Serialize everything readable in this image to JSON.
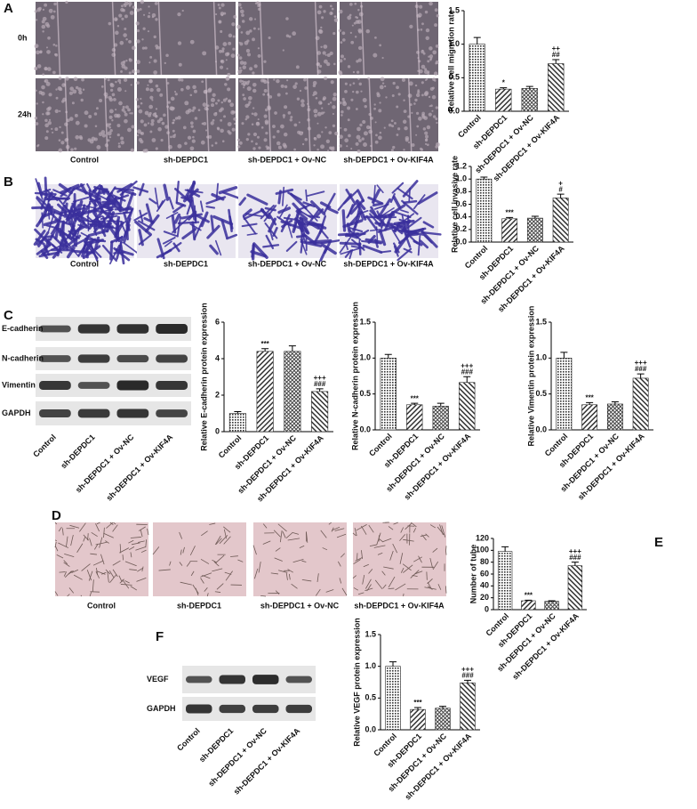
{
  "panel_labels": [
    "A",
    "B",
    "C",
    "D",
    "E",
    "F"
  ],
  "migration_images": {
    "rows": [
      "0h",
      "24h"
    ],
    "columns": [
      "Control",
      "sh-DEPDC1",
      "sh-DEPDC1 + Ov-NC",
      "sh-DEPDC1 + Ov-KIF4A"
    ]
  },
  "invasion_images": {
    "columns": [
      "Control",
      "sh-DEPDC1",
      "sh-DEPDC1 + Ov-NC",
      "sh-DEPDC1 + Ov-KIF4A"
    ]
  },
  "blot_c": {
    "proteins": [
      "E-cadherin",
      "N-cadherin",
      "Vimentin",
      "GAPDH"
    ],
    "lanes": [
      "Control",
      "sh-DEPDC1",
      "sh-DEPDC1 + Ov-NC",
      "sh-DEPDC1 + Ov-KIF4A"
    ]
  },
  "tube_images": {
    "columns": [
      "Control",
      "sh-DEPDC1",
      "sh-DEPDC1 + Ov-NC",
      "sh-DEPDC1 + Ov-KIF4A"
    ]
  },
  "blot_f": {
    "proteins": [
      "VEGF",
      "GAPDH"
    ],
    "lanes": [
      "Control",
      "sh-DEPDC1",
      "sh-DEPDC1 + Ov-NC",
      "sh-DEPDC1 + Ov-KIF4A"
    ]
  },
  "chart_data": [
    {
      "type": "bar",
      "y_label": "Relative cell migration rate",
      "categories": [
        "Control",
        "sh-DEPDC1",
        "sh-DEPDC1 + Ov-NC",
        "sh-DEPDC1 + Ov-KIF4A"
      ],
      "values": [
        1.0,
        0.33,
        0.34,
        0.71
      ],
      "errors": [
        0.1,
        0.02,
        0.03,
        0.06
      ],
      "ylim": [
        0,
        1.5
      ],
      "yticks": [
        {
          "value": 0,
          "label": "0.0"
        },
        {
          "value": 0.5,
          "label": "0.5"
        },
        {
          "value": 1,
          "label": "1.0"
        },
        {
          "value": 1.5,
          "label": "1.5"
        }
      ],
      "annotations": [
        {
          "bar": 1,
          "lines": [
            "*"
          ]
        },
        {
          "bar": 3,
          "lines": [
            "++",
            "##"
          ]
        }
      ]
    },
    {
      "type": "bar",
      "y_label": "Relative cell invasive rate",
      "categories": [
        "Control",
        "sh-DEPDC1",
        "sh-DEPDC1 + Ov-NC",
        "sh-DEPDC1 + Ov-KIF4A"
      ],
      "values": [
        1.0,
        0.37,
        0.38,
        0.7
      ],
      "errors": [
        0.03,
        0.02,
        0.03,
        0.06
      ],
      "ylim": [
        0,
        1.2
      ],
      "yticks": [
        {
          "value": 0,
          "label": "0.0"
        },
        {
          "value": 0.2,
          "label": "0.2"
        },
        {
          "value": 0.4,
          "label": "0.4"
        },
        {
          "value": 0.6,
          "label": "0.6"
        },
        {
          "value": 0.8,
          "label": "0.8"
        },
        {
          "value": 1,
          "label": "1.0"
        },
        {
          "value": 1.2,
          "label": "1.2"
        }
      ],
      "annotations": [
        {
          "bar": 1,
          "lines": [
            "***"
          ]
        },
        {
          "bar": 3,
          "lines": [
            "+",
            "#"
          ]
        }
      ]
    },
    {
      "type": "bar",
      "y_label": "Relative E-cadherin protein expression",
      "categories": [
        "Control",
        "sh-DEPDC1",
        "sh-DEPDC1 + Ov-NC",
        "sh-DEPDC1 + Ov-KIF4A"
      ],
      "values": [
        1.0,
        4.4,
        4.4,
        2.2
      ],
      "errors": [
        0.1,
        0.15,
        0.3,
        0.15
      ],
      "ylim": [
        0,
        6
      ],
      "yticks": [
        0,
        2,
        4,
        6
      ],
      "annotations": [
        {
          "bar": 1,
          "lines": [
            "***"
          ]
        },
        {
          "bar": 3,
          "lines": [
            "+++",
            "###"
          ]
        }
      ]
    },
    {
      "type": "bar",
      "y_label": "Relative N-cadherin protein expression",
      "categories": [
        "Control",
        "sh-DEPDC1",
        "sh-DEPDC1 + Ov-NC",
        "sh-DEPDC1 + Ov-KIF4A"
      ],
      "values": [
        1.0,
        0.35,
        0.33,
        0.66
      ],
      "errors": [
        0.05,
        0.02,
        0.04,
        0.08
      ],
      "ylim": [
        0,
        1.5
      ],
      "yticks": [
        {
          "value": 0,
          "label": "0.0"
        },
        {
          "value": 0.5,
          "label": "0.5"
        },
        {
          "value": 1,
          "label": "1.0"
        },
        {
          "value": 1.5,
          "label": "1.5"
        }
      ],
      "annotations": [
        {
          "bar": 1,
          "lines": [
            "***"
          ]
        },
        {
          "bar": 3,
          "lines": [
            "+++",
            "###"
          ]
        }
      ]
    },
    {
      "type": "bar",
      "y_label": "Relative Vimentin protein expression",
      "categories": [
        "Control",
        "sh-DEPDC1",
        "sh-DEPDC1 + Ov-NC",
        "sh-DEPDC1 + Ov-KIF4A"
      ],
      "values": [
        1.0,
        0.35,
        0.36,
        0.72
      ],
      "errors": [
        0.08,
        0.03,
        0.03,
        0.06
      ],
      "ylim": [
        0,
        1.5
      ],
      "yticks": [
        {
          "value": 0,
          "label": "0.0"
        },
        {
          "value": 0.5,
          "label": "0.5"
        },
        {
          "value": 1,
          "label": "1.0"
        },
        {
          "value": 1.5,
          "label": "1.5"
        }
      ],
      "annotations": [
        {
          "bar": 1,
          "lines": [
            "***"
          ]
        },
        {
          "bar": 3,
          "lines": [
            "+++",
            "###"
          ]
        }
      ]
    },
    {
      "type": "bar",
      "y_label": "Number of tube",
      "categories": [
        "Control",
        "sh-DEPDC1",
        "sh-DEPDC1 + Ov-NC",
        "sh-DEPDC1 + Ov-KIF4A"
      ],
      "values": [
        98,
        15,
        14,
        74
      ],
      "errors": [
        8,
        1,
        1,
        6
      ],
      "ylim": [
        0,
        120
      ],
      "yticks": [
        0,
        20,
        40,
        60,
        80,
        100,
        120
      ],
      "annotations": [
        {
          "bar": 1,
          "lines": [
            "***"
          ]
        },
        {
          "bar": 3,
          "lines": [
            "+++",
            "###"
          ]
        }
      ]
    },
    {
      "type": "bar",
      "y_label": "Relative VEGF protein expression",
      "categories": [
        "Control",
        "sh-DEPDC1",
        "sh-DEPDC1 + Ov-NC",
        "sh-DEPDC1 + Ov-KIF4A"
      ],
      "values": [
        1.0,
        0.32,
        0.34,
        0.74
      ],
      "errors": [
        0.07,
        0.03,
        0.03,
        0.04
      ],
      "ylim": [
        0,
        1.5
      ],
      "yticks": [
        {
          "value": 0,
          "label": "0.0"
        },
        {
          "value": 0.5,
          "label": "0.5"
        },
        {
          "value": 1,
          "label": "1.0"
        },
        {
          "value": 1.5,
          "label": "1.5"
        }
      ],
      "annotations": [
        {
          "bar": 1,
          "lines": [
            "***"
          ]
        },
        {
          "bar": 3,
          "lines": [
            "+++",
            "###"
          ]
        }
      ]
    }
  ]
}
